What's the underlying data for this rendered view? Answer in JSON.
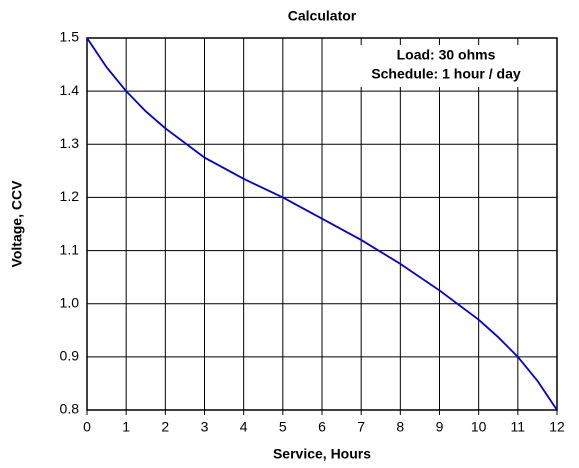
{
  "chart_data": {
    "type": "line",
    "title": "Calculator",
    "xlabel": "Service, Hours",
    "ylabel": "Voltage, CCV",
    "annotations": [
      "Load: 30 ohms",
      "Schedule: 1 hour / day"
    ],
    "x": [
      0,
      0.5,
      1,
      1.5,
      2,
      3,
      4,
      5,
      6,
      7,
      8,
      9,
      10,
      10.5,
      11,
      11.5,
      12
    ],
    "series": [
      {
        "name": "Voltage",
        "color": "#0000cc",
        "values": [
          1.5,
          1.445,
          1.4,
          1.362,
          1.33,
          1.275,
          1.235,
          1.2,
          1.16,
          1.12,
          1.075,
          1.025,
          0.97,
          0.937,
          0.9,
          0.855,
          0.8
        ]
      }
    ],
    "xlim": [
      0,
      12
    ],
    "xticks": [
      0,
      1,
      2,
      3,
      4,
      5,
      6,
      7,
      8,
      9,
      10,
      11,
      12
    ],
    "ylim": [
      0.8,
      1.5
    ],
    "yticks": [
      0.8,
      0.9,
      {
        "value": 1.0,
        "label": "1.0"
      },
      1.1,
      1.2,
      1.3,
      1.4,
      1.5
    ],
    "grid": true
  }
}
